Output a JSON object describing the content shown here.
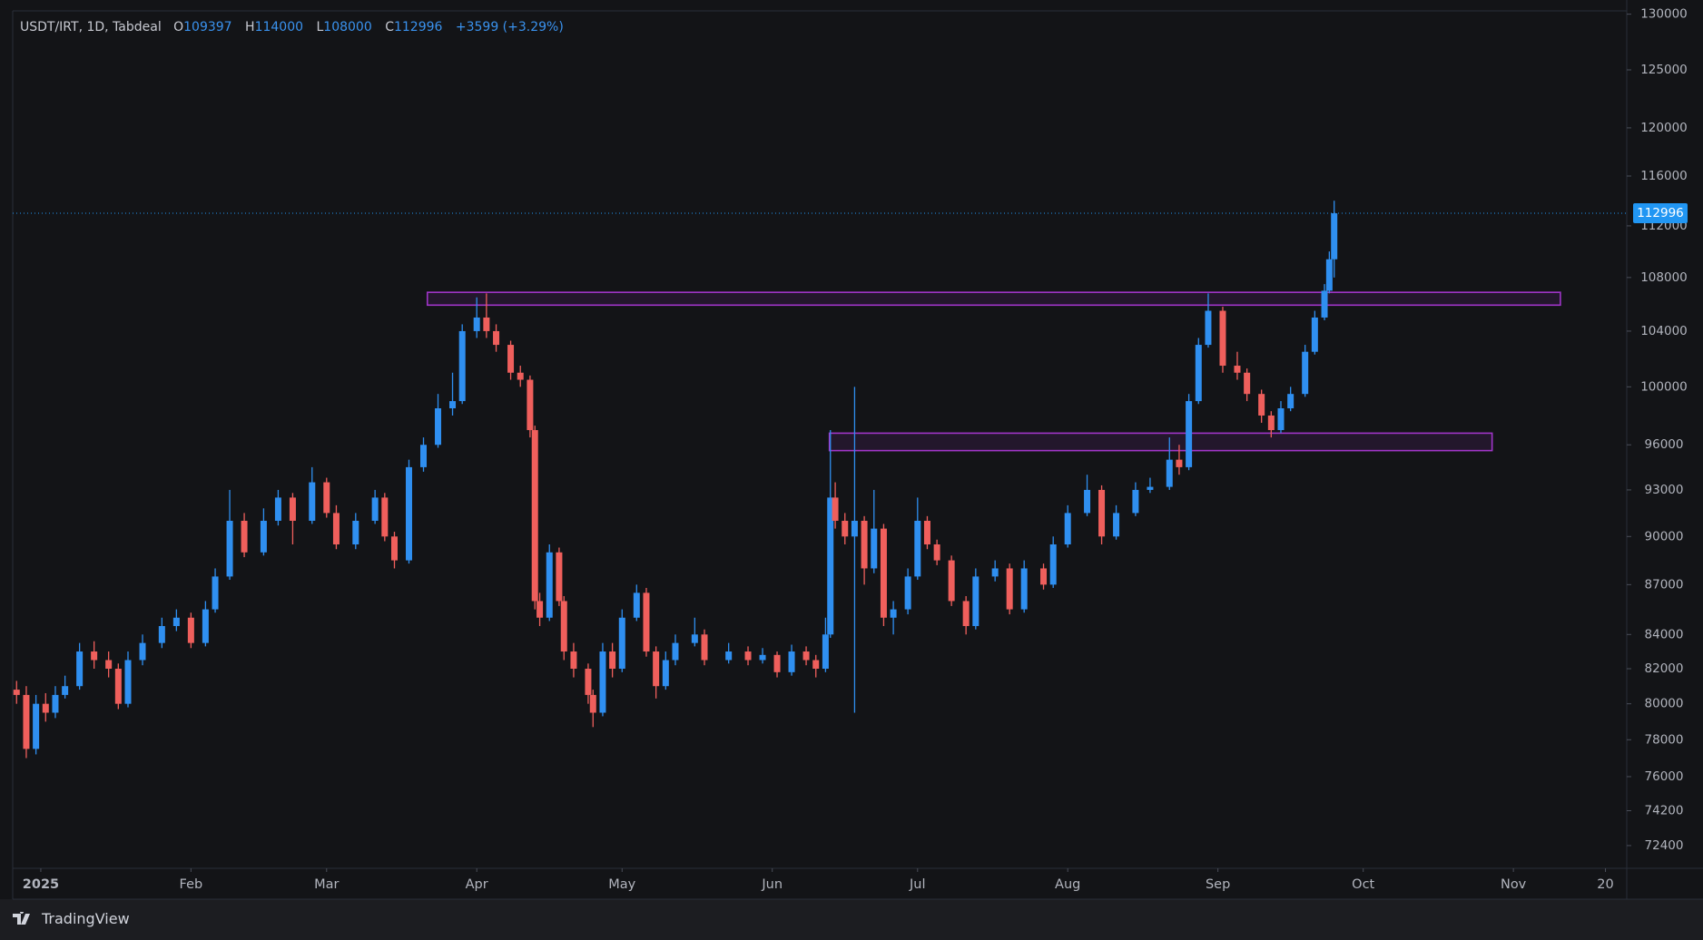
{
  "chart_data": {
    "type": "candlestick",
    "symbol": "USDT/IRT, 1D, Tabdeal",
    "ohlc_labels": [
      "O",
      "H",
      "L",
      "C"
    ],
    "change_text": "+3599 (+3.29%)",
    "up_color": "#2f8ff0",
    "down_color": "#ef5f5c",
    "log_scale": true,
    "x": [
      -5,
      -3,
      -1,
      1,
      3,
      5,
      8,
      11,
      14,
      16,
      18,
      21,
      25,
      28,
      31,
      34,
      36,
      39,
      42,
      46,
      49,
      52,
      56,
      59,
      61,
      65,
      69,
      71,
      73,
      76,
      79,
      82,
      85,
      87,
      90,
      92,
      94,
      97,
      99,
      101,
      102,
      103,
      105,
      107,
      108,
      110,
      113,
      114,
      116,
      118,
      120,
      123,
      125,
      127,
      129,
      131,
      135,
      137,
      142,
      146,
      149,
      152,
      155,
      158,
      160,
      162,
      163,
      164,
      166,
      168,
      170,
      172,
      174,
      176,
      179,
      181,
      183,
      185,
      188,
      191,
      193,
      197,
      200,
      203,
      207,
      209,
      212,
      216,
      219,
      222,
      226,
      229,
      233,
      235,
      237,
      239,
      241,
      244,
      247,
      249,
      252,
      254,
      256,
      258,
      261,
      263,
      265,
      266,
      267
    ],
    "open": [
      80800,
      80500,
      77500,
      80000,
      79500,
      80500,
      81000,
      83000,
      82500,
      82000,
      80000,
      82500,
      83500,
      84500,
      85000,
      83500,
      85500,
      87500,
      91000,
      89000,
      91000,
      92500,
      91000,
      93500,
      91500,
      89500,
      91000,
      92500,
      90000,
      88500,
      94500,
      96000,
      98500,
      99000,
      104000,
      105000,
      104000,
      103000,
      101000,
      100500,
      97000,
      86000,
      85000,
      89000,
      86000,
      83000,
      82000,
      80500,
      79500,
      83000,
      82000,
      85000,
      86500,
      83000,
      81000,
      82500,
      83500,
      84000,
      82500,
      83000,
      82500,
      82800,
      81800,
      83000,
      82500,
      82000,
      84000,
      92500,
      91000,
      90000,
      91000,
      88000,
      90500,
      85000,
      85500,
      87500,
      91000,
      89500,
      88500,
      86000,
      84500,
      87500,
      88000,
      85500,
      88000,
      87000,
      89500,
      91500,
      93000,
      90000,
      91500,
      93000,
      93200,
      95000,
      94500,
      99000,
      103000,
      105500,
      101500,
      101000,
      99500,
      98000,
      97000,
      98500,
      99500,
      102500,
      105000,
      107000,
      109397
    ],
    "high": [
      81300,
      81000,
      80500,
      80600,
      81000,
      81600,
      83500,
      83600,
      83000,
      82300,
      83000,
      84000,
      85000,
      85500,
      85300,
      86000,
      88000,
      93000,
      91500,
      91800,
      93000,
      92800,
      94500,
      93800,
      92000,
      91500,
      93000,
      92800,
      90300,
      95000,
      96500,
      99500,
      101000,
      104500,
      106500,
      106800,
      104500,
      103300,
      101500,
      100800,
      97300,
      86500,
      89500,
      89300,
      86300,
      83500,
      82300,
      80800,
      83500,
      83500,
      85500,
      87000,
      86800,
      83300,
      83000,
      84000,
      85000,
      84300,
      83500,
      83300,
      83200,
      83000,
      83400,
      83300,
      82800,
      85000,
      97000,
      93500,
      91500,
      100000,
      91300,
      93000,
      90800,
      86000,
      88000,
      92500,
      91300,
      89800,
      88800,
      86300,
      88000,
      88500,
      88300,
      88500,
      88300,
      90000,
      92000,
      94000,
      93300,
      92000,
      93500,
      93800,
      96500,
      96000,
      99500,
      103500,
      106800,
      105800,
      102500,
      101300,
      99800,
      98300,
      99000,
      100000,
      103000,
      105500,
      107500,
      110000,
      114000
    ],
    "low": [
      80000,
      77000,
      77200,
      79000,
      79200,
      80300,
      80800,
      82000,
      81500,
      79700,
      79800,
      82200,
      83200,
      84200,
      83200,
      83300,
      85300,
      87300,
      88700,
      88800,
      90700,
      89500,
      90800,
      91200,
      89200,
      89200,
      90800,
      89700,
      88000,
      88300,
      94200,
      95800,
      98000,
      98800,
      103500,
      103500,
      102500,
      100500,
      100000,
      96500,
      85500,
      84500,
      84800,
      85700,
      82500,
      81500,
      80000,
      78700,
      79300,
      81500,
      81800,
      84800,
      82700,
      80300,
      80800,
      82200,
      83300,
      82200,
      82300,
      82200,
      82300,
      81500,
      81600,
      82200,
      81500,
      81800,
      83800,
      90500,
      89500,
      79500,
      87000,
      87700,
      84500,
      84000,
      85200,
      87300,
      89200,
      88200,
      85700,
      84000,
      84300,
      87200,
      85200,
      85300,
      86700,
      86800,
      89300,
      91300,
      89500,
      89800,
      91300,
      92800,
      93000,
      94000,
      94300,
      98800,
      102800,
      101000,
      100500,
      99000,
      97500,
      96500,
      96800,
      98300,
      99300,
      102300,
      104800,
      106800,
      108000
    ],
    "close": [
      80500,
      77500,
      80000,
      79500,
      80500,
      81000,
      83000,
      82500,
      82000,
      80000,
      82500,
      83500,
      84500,
      85000,
      83500,
      85500,
      87500,
      91000,
      89000,
      91000,
      92500,
      91000,
      93500,
      91500,
      89500,
      91000,
      92500,
      90000,
      88500,
      94500,
      96000,
      98500,
      99000,
      104000,
      105000,
      104000,
      103000,
      101000,
      100500,
      97000,
      86000,
      85000,
      89000,
      86000,
      83000,
      82000,
      80500,
      79500,
      83000,
      82000,
      85000,
      86500,
      83000,
      81000,
      82500,
      83500,
      84000,
      82500,
      83000,
      82500,
      82800,
      81800,
      83000,
      82500,
      82000,
      84000,
      92500,
      91000,
      90000,
      91000,
      88000,
      90500,
      85000,
      85500,
      87500,
      91000,
      89500,
      88500,
      86000,
      84500,
      87500,
      88000,
      85500,
      88000,
      87000,
      89500,
      91500,
      93000,
      90000,
      91500,
      93000,
      93200,
      95000,
      94500,
      99000,
      103000,
      105500,
      101500,
      101000,
      99500,
      98000,
      97000,
      98500,
      99500,
      102500,
      105000,
      107000,
      109397,
      112996
    ],
    "ylim": [
      71250,
      130300
    ],
    "yticks": [
      130000,
      125000,
      120000,
      116000,
      112000,
      108000,
      104000,
      100000,
      96000,
      93000,
      90000,
      87000,
      84000,
      82000,
      80000,
      78000,
      76000,
      74200,
      72400
    ],
    "xlim": [
      -5.8,
      327.4
    ],
    "xticks": [
      {
        "value": 0,
        "label": "2025"
      },
      {
        "value": 31,
        "label": "Feb"
      },
      {
        "value": 59,
        "label": "Mar"
      },
      {
        "value": 90,
        "label": "Apr"
      },
      {
        "value": 120,
        "label": "May"
      },
      {
        "value": 151,
        "label": "Jun"
      },
      {
        "value": 181,
        "label": "Jul"
      },
      {
        "value": 212,
        "label": "Aug"
      },
      {
        "value": 243,
        "label": "Sep"
      },
      {
        "value": 273,
        "label": "Oct"
      },
      {
        "value": 304,
        "label": "Nov"
      },
      {
        "value": 323,
        "label": "20"
      }
    ],
    "zones": [
      {
        "start": 79.8,
        "end": 313.7,
        "top": 106880,
        "bottom": 105920
      },
      {
        "start": 162.8,
        "end": 299.6,
        "top": 96790,
        "bottom": 95610
      }
    ],
    "zone_color": "#a035c8",
    "last_price_color": "#2196f3"
  },
  "footer": {
    "brand": "TradingView"
  }
}
